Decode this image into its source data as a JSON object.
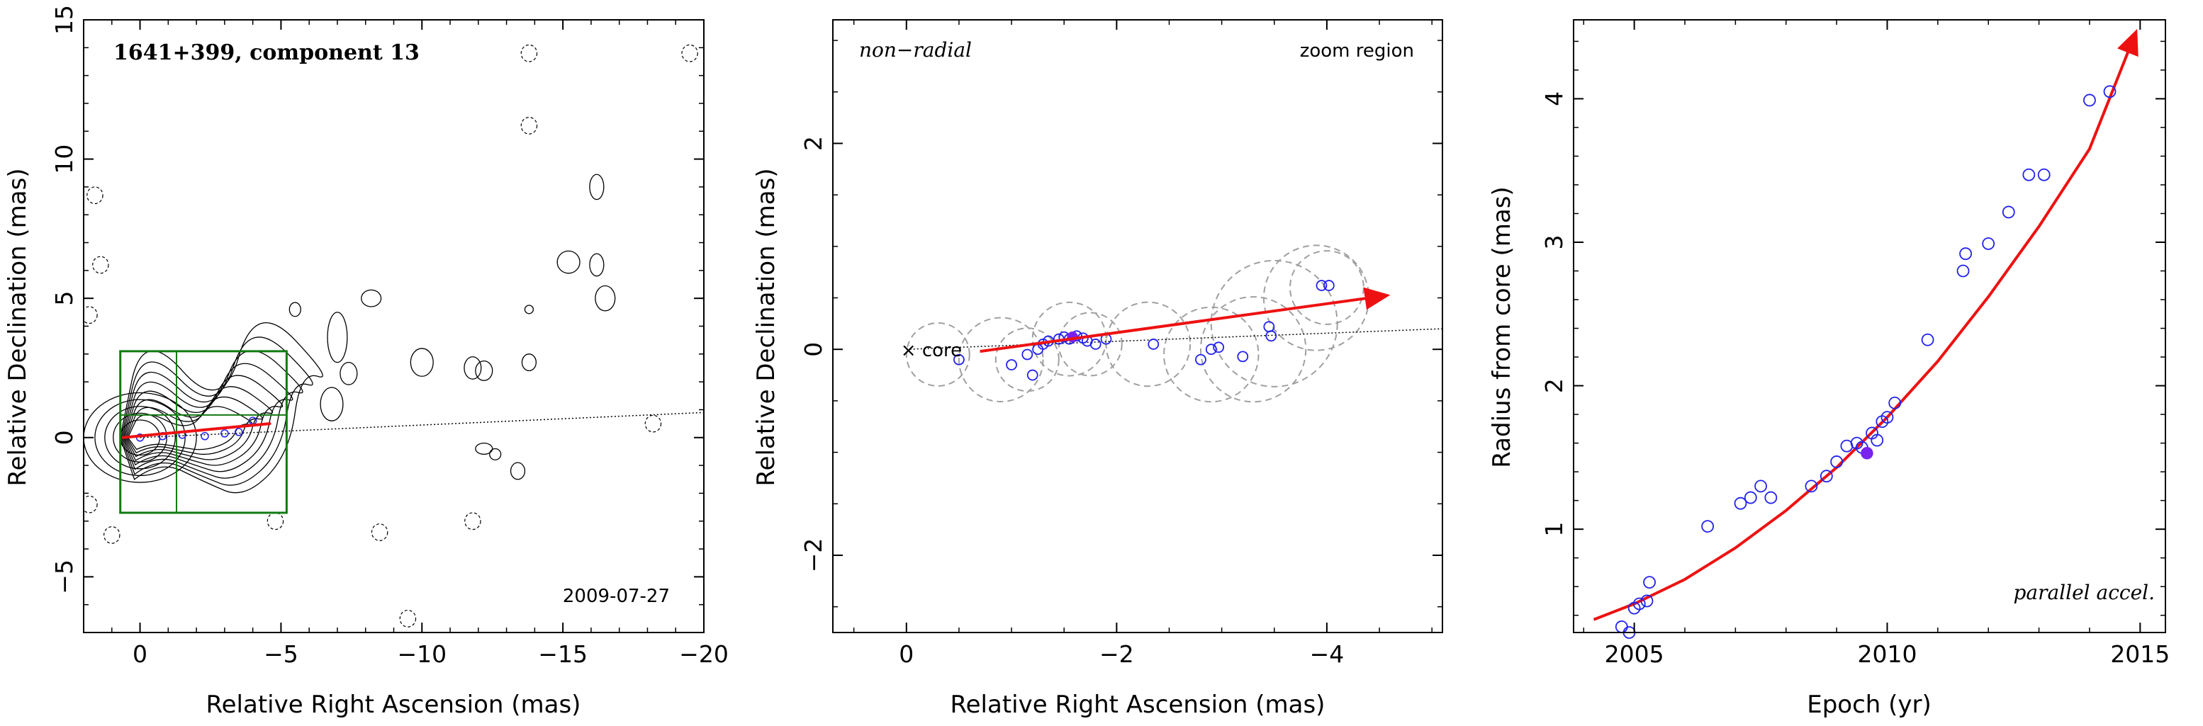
{
  "panels": [
    {
      "title": "1641+399, component 13",
      "date": "2009-07-27",
      "xlabel": "Relative Right Ascension (mas)",
      "ylabel": "Relative Declination (mas)"
    },
    {
      "label_left": "non−radial",
      "label_right": "zoom region",
      "core_label": "× core",
      "xlabel": "Relative Right Ascension (mas)",
      "ylabel": "Relative Declination (mas)"
    },
    {
      "note": "parallel accel.",
      "xlabel": "Epoch (yr)",
      "ylabel": "Radius from core (mas)"
    }
  ],
  "chart_data": [
    {
      "type": "scatter",
      "title": "1641+399, component 13",
      "annotation": "2009-07-27",
      "xlabel": "Relative Right Ascension (mas)",
      "ylabel": "Relative Declination (mas)",
      "xlim": [
        2,
        -20
      ],
      "ylim": [
        -7,
        15
      ],
      "xticks": [
        0,
        -5,
        -10,
        -15,
        -20
      ],
      "yticks": [
        -5,
        0,
        5,
        10,
        15
      ],
      "xtick_labels": [
        "0",
        "−5",
        "−10",
        "−15",
        "−20"
      ],
      "ytick_labels": [
        "−5",
        "0",
        "5",
        "10",
        "15"
      ],
      "contour_image": true,
      "zoom_box": {
        "x_range": [
          0.7,
          -5.2
        ],
        "y_range": [
          -2.7,
          3.1
        ]
      },
      "points": [
        {
          "x": 0.0,
          "y": 0.0
        },
        {
          "x": -0.8,
          "y": 0.05
        },
        {
          "x": -1.5,
          "y": 0.1
        },
        {
          "x": -2.3,
          "y": 0.05
        },
        {
          "x": -3.0,
          "y": 0.15
        },
        {
          "x": -3.5,
          "y": 0.2
        },
        {
          "x": -4.0,
          "y": 0.6
        }
      ],
      "vector": {
        "from": [
          0.6,
          0.0
        ],
        "to": [
          -4.6,
          0.5
        ]
      },
      "axis_line": {
        "from": [
          0,
          0
        ],
        "to": [
          -20,
          0.9
        ]
      }
    },
    {
      "type": "scatter",
      "xlabel": "Relative Right Ascension (mas)",
      "ylabel": "Relative Declination (mas)",
      "xlim": [
        0.7,
        -5.1
      ],
      "ylim": [
        -2.75,
        3.2
      ],
      "xticks": [
        0,
        -2,
        -4
      ],
      "yticks": [
        -2,
        0,
        2
      ],
      "xtick_labels": [
        "0",
        "−2",
        "−4"
      ],
      "ytick_labels": [
        "−2",
        "0",
        "2"
      ],
      "core": {
        "x": 0,
        "y": 0
      },
      "points": [
        {
          "x": -0.5,
          "y": -0.1
        },
        {
          "x": -1.0,
          "y": -0.15
        },
        {
          "x": -1.15,
          "y": -0.05
        },
        {
          "x": -1.2,
          "y": -0.25
        },
        {
          "x": -1.25,
          "y": 0.0
        },
        {
          "x": -1.3,
          "y": 0.05
        },
        {
          "x": -1.35,
          "y": 0.08
        },
        {
          "x": -1.45,
          "y": 0.1
        },
        {
          "x": -1.5,
          "y": 0.12
        },
        {
          "x": -1.55,
          "y": 0.1
        },
        {
          "x": -1.62,
          "y": 0.13
        },
        {
          "x": -1.68,
          "y": 0.11
        },
        {
          "x": -1.72,
          "y": 0.08
        },
        {
          "x": -1.8,
          "y": 0.05
        },
        {
          "x": -1.9,
          "y": 0.1
        },
        {
          "x": -2.35,
          "y": 0.05
        },
        {
          "x": -2.8,
          "y": -0.1
        },
        {
          "x": -2.9,
          "y": 0.0
        },
        {
          "x": -2.97,
          "y": 0.02
        },
        {
          "x": -3.2,
          "y": -0.07
        },
        {
          "x": -3.45,
          "y": 0.22
        },
        {
          "x": -3.47,
          "y": 0.13
        },
        {
          "x": -3.95,
          "y": 0.62
        },
        {
          "x": -4.02,
          "y": 0.62
        }
      ],
      "filled_point": {
        "x": -1.58,
        "y": 0.12
      },
      "uncertainty_circles": [
        {
          "x": -0.3,
          "y": -0.05,
          "r": 0.3
        },
        {
          "x": -0.9,
          "y": -0.1,
          "r": 0.4
        },
        {
          "x": -1.15,
          "y": -0.1,
          "r": 0.3
        },
        {
          "x": -1.55,
          "y": 0.1,
          "r": 0.35
        },
        {
          "x": -1.75,
          "y": 0.05,
          "r": 0.3
        },
        {
          "x": -2.3,
          "y": 0.05,
          "r": 0.4
        },
        {
          "x": -2.9,
          "y": -0.05,
          "r": 0.45
        },
        {
          "x": -3.3,
          "y": 0.0,
          "r": 0.5
        },
        {
          "x": -3.5,
          "y": 0.25,
          "r": 0.6
        },
        {
          "x": -3.9,
          "y": 0.5,
          "r": 0.5
        },
        {
          "x": -4.0,
          "y": 0.6,
          "r": 0.35
        }
      ],
      "vector": {
        "from": [
          -0.7,
          -0.02
        ],
        "to": [
          -4.55,
          0.52
        ]
      },
      "axis_line": {
        "from": [
          0,
          0
        ],
        "to": [
          -5.1,
          0.2
        ]
      }
    },
    {
      "type": "scatter",
      "xlabel": "Epoch (yr)",
      "ylabel": "Radius from core (mas)",
      "xlim": [
        2003.8,
        2015.5
      ],
      "ylim": [
        0.28,
        4.55
      ],
      "xticks": [
        2005,
        2010,
        2015
      ],
      "yticks": [
        1,
        2,
        3,
        4
      ],
      "xtick_labels": [
        "2005",
        "2010",
        "2015"
      ],
      "ytick_labels": [
        "1",
        "2",
        "3",
        "4"
      ],
      "points": [
        {
          "x": 2004.75,
          "y": 0.32
        },
        {
          "x": 2004.9,
          "y": 0.28
        },
        {
          "x": 2005.0,
          "y": 0.45
        },
        {
          "x": 2005.1,
          "y": 0.48
        },
        {
          "x": 2005.25,
          "y": 0.5
        },
        {
          "x": 2005.3,
          "y": 0.63
        },
        {
          "x": 2006.45,
          "y": 1.02
        },
        {
          "x": 2007.1,
          "y": 1.18
        },
        {
          "x": 2007.3,
          "y": 1.22
        },
        {
          "x": 2007.5,
          "y": 1.3
        },
        {
          "x": 2007.7,
          "y": 1.22
        },
        {
          "x": 2008.5,
          "y": 1.3
        },
        {
          "x": 2008.8,
          "y": 1.37
        },
        {
          "x": 2009.0,
          "y": 1.47
        },
        {
          "x": 2009.2,
          "y": 1.58
        },
        {
          "x": 2009.4,
          "y": 1.6
        },
        {
          "x": 2009.5,
          "y": 1.57
        },
        {
          "x": 2009.7,
          "y": 1.67
        },
        {
          "x": 2009.8,
          "y": 1.62
        },
        {
          "x": 2009.9,
          "y": 1.75
        },
        {
          "x": 2010.0,
          "y": 1.78
        },
        {
          "x": 2010.15,
          "y": 1.88
        },
        {
          "x": 2010.8,
          "y": 2.32
        },
        {
          "x": 2011.5,
          "y": 2.8
        },
        {
          "x": 2011.55,
          "y": 2.92
        },
        {
          "x": 2012.0,
          "y": 2.99
        },
        {
          "x": 2012.4,
          "y": 3.21
        },
        {
          "x": 2012.8,
          "y": 3.47
        },
        {
          "x": 2013.1,
          "y": 3.47
        },
        {
          "x": 2014.0,
          "y": 3.99
        },
        {
          "x": 2014.4,
          "y": 4.05
        }
      ],
      "filled_point": {
        "x": 2009.6,
        "y": 1.53
      },
      "fit_curve": [
        {
          "x": 2004.2,
          "y": 0.37
        },
        {
          "x": 2005.0,
          "y": 0.48
        },
        {
          "x": 2006.0,
          "y": 0.65
        },
        {
          "x": 2007.0,
          "y": 0.87
        },
        {
          "x": 2008.0,
          "y": 1.13
        },
        {
          "x": 2009.0,
          "y": 1.43
        },
        {
          "x": 2010.0,
          "y": 1.78
        },
        {
          "x": 2011.0,
          "y": 2.17
        },
        {
          "x": 2012.0,
          "y": 2.62
        },
        {
          "x": 2013.0,
          "y": 3.11
        },
        {
          "x": 2014.0,
          "y": 3.65
        },
        {
          "x": 2014.9,
          "y": 4.45
        }
      ],
      "annotation": "parallel accel."
    }
  ]
}
